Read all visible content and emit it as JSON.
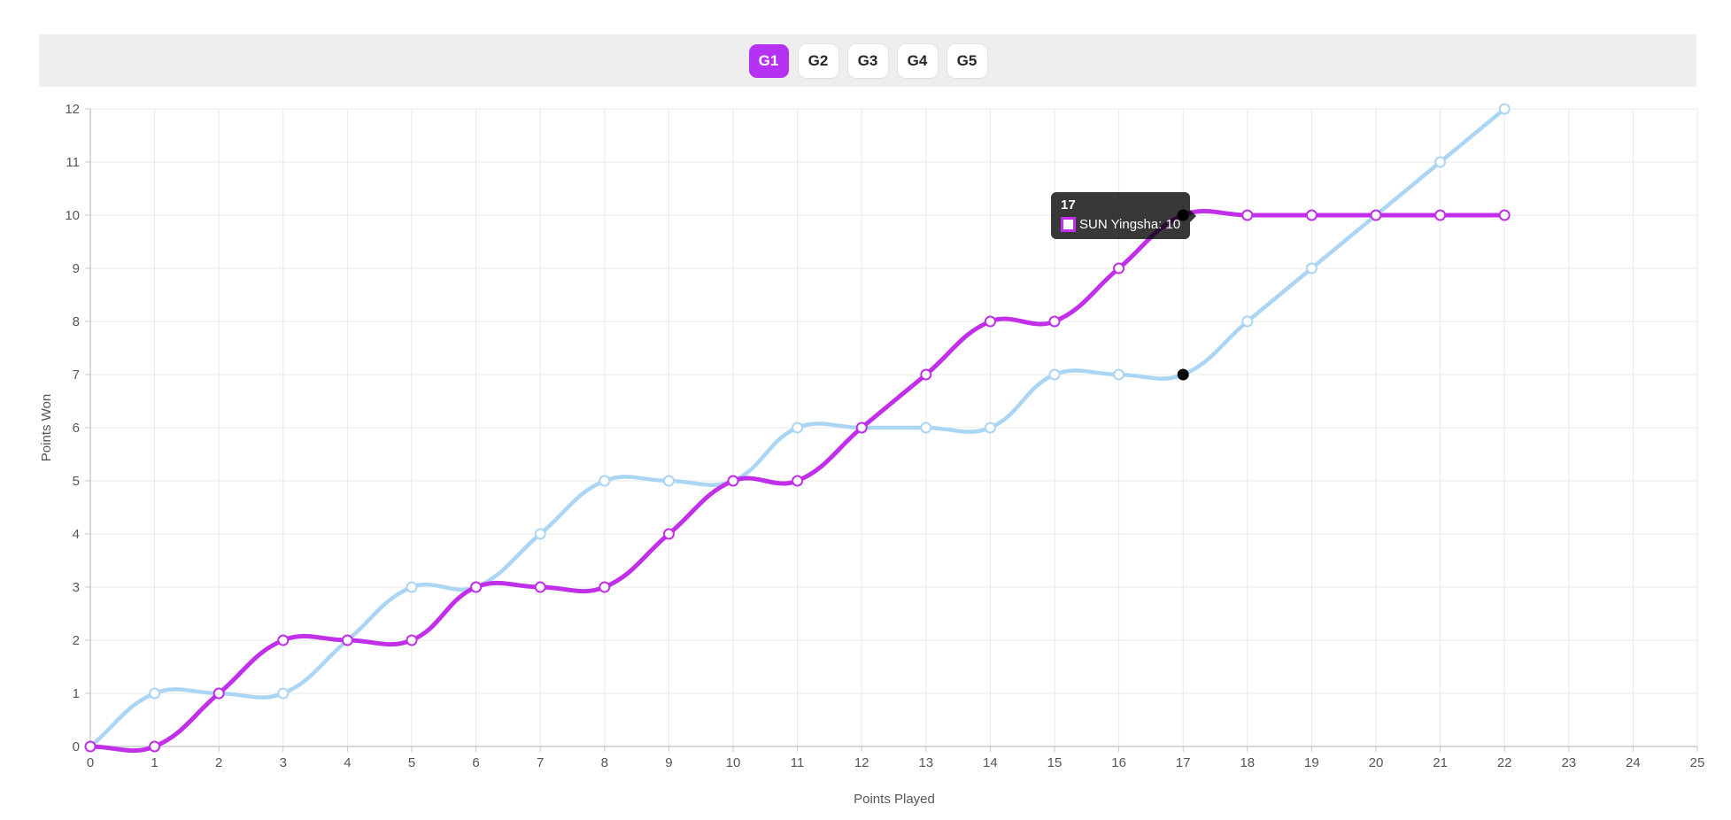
{
  "page": {
    "background": "#ffffff"
  },
  "toolbar": {
    "background": "#eeeeee",
    "active_bg": "#b632f2",
    "active_text": "#ffffff",
    "inactive_bg": "#ffffff",
    "inactive_text": "#262626",
    "tabs": [
      {
        "label": "G1",
        "active": true
      },
      {
        "label": "G2",
        "active": false
      },
      {
        "label": "G3",
        "active": false
      },
      {
        "label": "G4",
        "active": false
      },
      {
        "label": "G5",
        "active": false
      }
    ]
  },
  "tooltip": {
    "title": "17",
    "background": "rgba(0,0,0,0.78)",
    "rows": [
      {
        "text": "SUN Yingsha: 10",
        "swatch_fill": "#ffffff",
        "swatch_border": "#c12fe8"
      }
    ]
  },
  "chart_data": {
    "type": "line",
    "title": "",
    "xlabel": "Points Played",
    "ylabel": "Points Won",
    "xlim": [
      0,
      25
    ],
    "ylim": [
      0,
      12
    ],
    "x_tick_step": 1,
    "y_tick_step": 1,
    "grid": true,
    "legend_position": "none",
    "x": [
      0,
      1,
      2,
      3,
      4,
      5,
      6,
      7,
      8,
      9,
      10,
      11,
      12,
      13,
      14,
      15,
      16,
      17,
      18,
      19,
      20,
      21,
      22
    ],
    "series": [
      {
        "name": "SUN Yingsha",
        "color": "#c12fe8",
        "line_width": 5,
        "point_style": "open-circle",
        "values": [
          0,
          0,
          1,
          2,
          2,
          2,
          3,
          3,
          3,
          4,
          5,
          5,
          6,
          7,
          8,
          8,
          9,
          10,
          10,
          10,
          10,
          10,
          10
        ]
      },
      {
        "name": "",
        "color": "#abd5f5",
        "line_width": 4.5,
        "point_style": "open-circle",
        "values": [
          0,
          1,
          1,
          1,
          2,
          3,
          3,
          4,
          5,
          5,
          5,
          6,
          6,
          6,
          6,
          7,
          7,
          7,
          8,
          9,
          10,
          11,
          12
        ]
      }
    ],
    "highlight": {
      "x": 17,
      "dot_color": "#0a0a0a",
      "points": [
        {
          "series": 0,
          "y": 10
        },
        {
          "series": 1,
          "y": 7
        }
      ]
    },
    "style": {
      "grid_color": "#e9e9e9",
      "axis_color": "#b3b3b3",
      "tick_color": "#c6c6c6",
      "label_color": "#565656",
      "marker_fill": "#ffffff"
    }
  }
}
